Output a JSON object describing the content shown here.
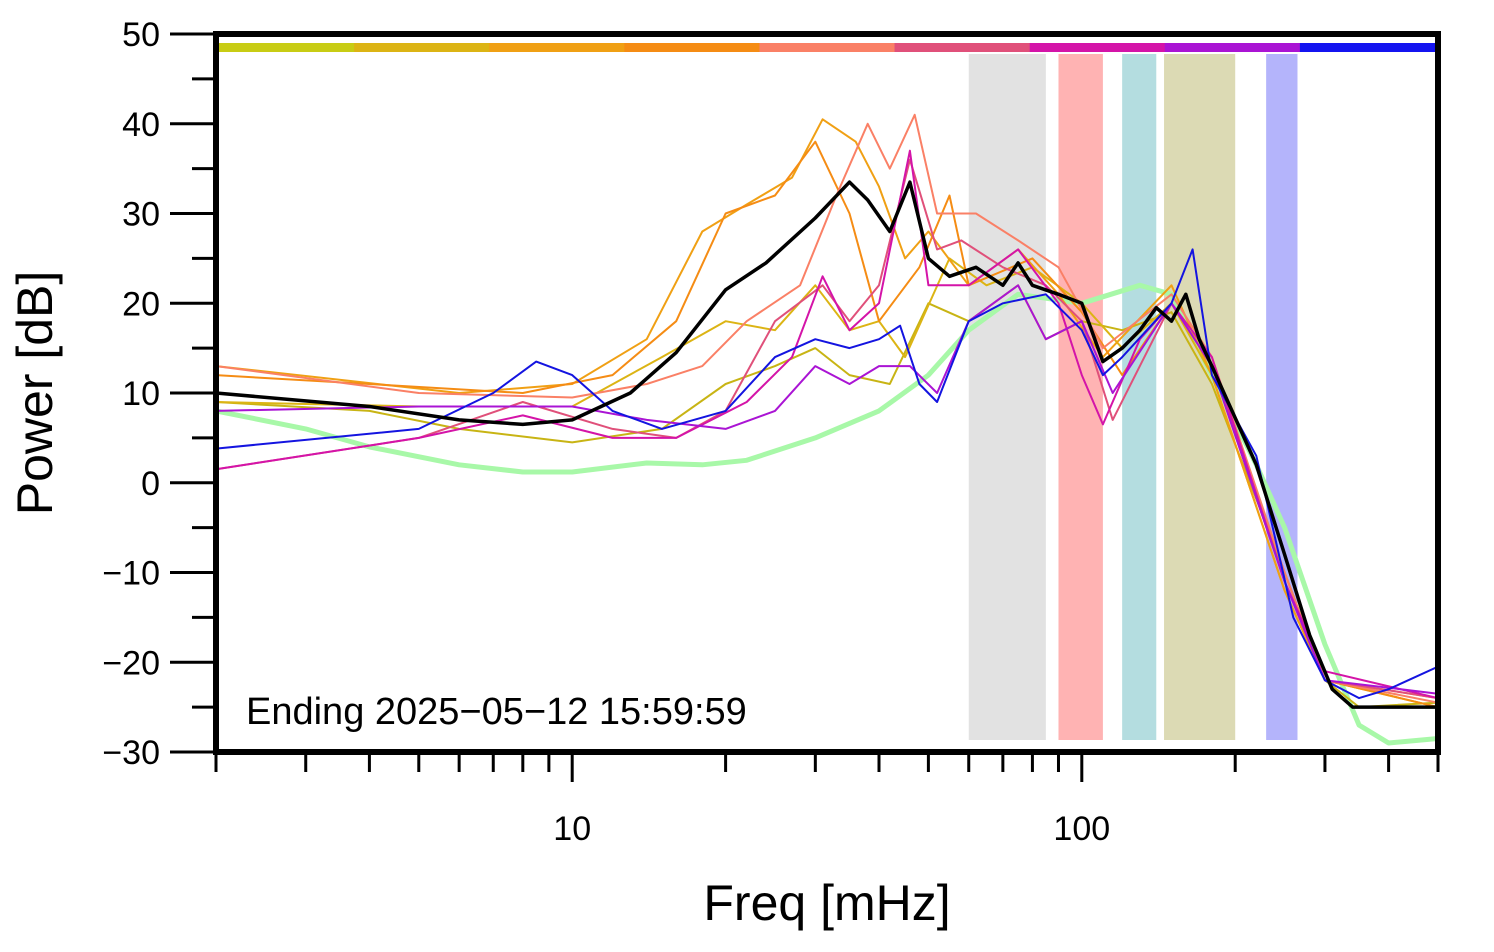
{
  "chart_data": {
    "type": "line",
    "title": "",
    "xlabel": "Freq [mHz]",
    "ylabel": "Power [dB]",
    "x_scale": "log",
    "xlim": [
      2,
      500
    ],
    "ylim": [
      -30,
      50
    ],
    "x_ticks": [
      10,
      100
    ],
    "y_ticks": [
      -30,
      -20,
      -10,
      0,
      10,
      20,
      30,
      40,
      50
    ],
    "annotation": "Ending 2025−05−12 15:59:59",
    "bands": [
      {
        "from": 60,
        "to": 85,
        "color": "#e2e2e2"
      },
      {
        "from": 90,
        "to": 110,
        "color": "#ffb3b3"
      },
      {
        "from": 120,
        "to": 140,
        "color": "#b4dde0"
      },
      {
        "from": 145,
        "to": 200,
        "color": "#dcdab4"
      },
      {
        "from": 230,
        "to": 265,
        "color": "#b4b4fb"
      }
    ],
    "time_strip": [
      "#c8cc14",
      "#dcb414",
      "#f0a014",
      "#f58c14",
      "#fa8066",
      "#e0507a",
      "#d414a8",
      "#aa14d4",
      "#1414f0"
    ],
    "series": [
      {
        "color": "#a8f8a8",
        "width": 5,
        "points": [
          [
            2,
            8
          ],
          [
            3,
            6
          ],
          [
            4,
            4
          ],
          [
            6,
            2
          ],
          [
            8,
            1.2
          ],
          [
            10,
            1.2
          ],
          [
            14,
            2.2
          ],
          [
            18,
            2
          ],
          [
            22,
            2.5
          ],
          [
            30,
            5
          ],
          [
            40,
            8
          ],
          [
            50,
            12
          ],
          [
            60,
            17
          ],
          [
            75,
            21
          ],
          [
            100,
            20
          ],
          [
            130,
            22
          ],
          [
            150,
            21
          ],
          [
            180,
            12
          ],
          [
            220,
            2
          ],
          [
            250,
            -5
          ],
          [
            300,
            -18
          ],
          [
            350,
            -27
          ],
          [
            400,
            -29
          ],
          [
            500,
            -28.5
          ]
        ]
      },
      {
        "color": "#c8b414",
        "width": 2,
        "points": [
          [
            2,
            9
          ],
          [
            4,
            8
          ],
          [
            6,
            6
          ],
          [
            10,
            4.5
          ],
          [
            15,
            6
          ],
          [
            20,
            11
          ],
          [
            25,
            13
          ],
          [
            30,
            15
          ],
          [
            35,
            12
          ],
          [
            42,
            11
          ],
          [
            50,
            20
          ],
          [
            60,
            18
          ],
          [
            75,
            22
          ],
          [
            85,
            16
          ],
          [
            100,
            18
          ],
          [
            120,
            17
          ],
          [
            150,
            19
          ],
          [
            180,
            11
          ],
          [
            250,
            -10
          ],
          [
            300,
            -22
          ],
          [
            350,
            -25
          ],
          [
            500,
            -24.5
          ]
        ]
      },
      {
        "color": "#dcb414",
        "width": 2,
        "points": [
          [
            2,
            9
          ],
          [
            5,
            8.5
          ],
          [
            10,
            8.5
          ],
          [
            15,
            14
          ],
          [
            20,
            18
          ],
          [
            25,
            17
          ],
          [
            30,
            22
          ],
          [
            35,
            17
          ],
          [
            40,
            18
          ],
          [
            45,
            14
          ],
          [
            55,
            25
          ],
          [
            65,
            22
          ],
          [
            80,
            24
          ],
          [
            100,
            20
          ],
          [
            120,
            15
          ],
          [
            150,
            20
          ],
          [
            180,
            12
          ],
          [
            250,
            -12
          ],
          [
            300,
            -22
          ],
          [
            500,
            -25
          ]
        ]
      },
      {
        "color": "#f0a014",
        "width": 2,
        "points": [
          [
            2,
            13
          ],
          [
            6,
            10
          ],
          [
            10,
            11
          ],
          [
            14,
            16
          ],
          [
            18,
            28
          ],
          [
            22,
            31
          ],
          [
            27,
            34
          ],
          [
            31,
            40.5
          ],
          [
            36,
            38
          ],
          [
            40,
            33
          ],
          [
            45,
            25
          ],
          [
            50,
            28
          ],
          [
            60,
            22
          ],
          [
            75,
            26
          ],
          [
            90,
            21
          ],
          [
            110,
            14
          ],
          [
            150,
            22
          ],
          [
            180,
            12
          ],
          [
            250,
            -12
          ],
          [
            300,
            -22
          ],
          [
            500,
            -24
          ]
        ]
      },
      {
        "color": "#f58c14",
        "width": 2,
        "points": [
          [
            2,
            12
          ],
          [
            8,
            10
          ],
          [
            12,
            12
          ],
          [
            16,
            18
          ],
          [
            20,
            30
          ],
          [
            25,
            32
          ],
          [
            30,
            38
          ],
          [
            35,
            30
          ],
          [
            40,
            18
          ],
          [
            48,
            24
          ],
          [
            55,
            32
          ],
          [
            60,
            22
          ],
          [
            80,
            25
          ],
          [
            100,
            19
          ],
          [
            120,
            12
          ],
          [
            150,
            20
          ],
          [
            180,
            13
          ],
          [
            250,
            -10
          ],
          [
            300,
            -22
          ],
          [
            500,
            -25
          ]
        ]
      },
      {
        "color": "#fa8066",
        "width": 2,
        "points": [
          [
            2,
            13
          ],
          [
            5,
            10
          ],
          [
            10,
            9.5
          ],
          [
            14,
            11
          ],
          [
            18,
            13
          ],
          [
            22,
            18
          ],
          [
            28,
            22
          ],
          [
            33,
            32
          ],
          [
            38,
            40
          ],
          [
            42,
            35
          ],
          [
            47,
            41
          ],
          [
            52,
            30
          ],
          [
            62,
            30
          ],
          [
            75,
            27
          ],
          [
            90,
            24
          ],
          [
            110,
            15
          ],
          [
            150,
            21
          ],
          [
            180,
            14
          ],
          [
            250,
            -10
          ],
          [
            300,
            -22
          ],
          [
            500,
            -24.5
          ]
        ]
      },
      {
        "color": "#e0507a",
        "width": 2,
        "points": [
          [
            2,
            1.5
          ],
          [
            5,
            5
          ],
          [
            8,
            9
          ],
          [
            12,
            6
          ],
          [
            16,
            5
          ],
          [
            20,
            8
          ],
          [
            25,
            18
          ],
          [
            31,
            22
          ],
          [
            35,
            18
          ],
          [
            40,
            22
          ],
          [
            46,
            36
          ],
          [
            52,
            26
          ],
          [
            58,
            27
          ],
          [
            70,
            24
          ],
          [
            85,
            22
          ],
          [
            100,
            18
          ],
          [
            115,
            7
          ],
          [
            150,
            20
          ],
          [
            180,
            13
          ],
          [
            250,
            -11
          ],
          [
            300,
            -22
          ],
          [
            500,
            -24
          ]
        ]
      },
      {
        "color": "#d414a8",
        "width": 2,
        "points": [
          [
            2,
            1.5
          ],
          [
            5,
            5
          ],
          [
            8,
            7.5
          ],
          [
            12,
            5
          ],
          [
            16,
            5
          ],
          [
            22,
            9
          ],
          [
            27,
            14
          ],
          [
            31,
            23
          ],
          [
            35,
            17
          ],
          [
            40,
            20
          ],
          [
            46,
            37
          ],
          [
            50,
            22
          ],
          [
            60,
            22
          ],
          [
            75,
            26
          ],
          [
            90,
            20
          ],
          [
            100,
            12
          ],
          [
            110,
            6.5
          ],
          [
            130,
            16
          ],
          [
            150,
            20
          ],
          [
            180,
            14
          ],
          [
            250,
            -11
          ],
          [
            300,
            -21
          ],
          [
            500,
            -24
          ]
        ]
      },
      {
        "color": "#aa14d4",
        "width": 2,
        "points": [
          [
            2,
            8
          ],
          [
            5,
            8.5
          ],
          [
            10,
            8.5
          ],
          [
            14,
            7
          ],
          [
            20,
            6
          ],
          [
            25,
            8
          ],
          [
            30,
            13
          ],
          [
            35,
            11
          ],
          [
            40,
            13
          ],
          [
            46,
            13
          ],
          [
            52,
            10
          ],
          [
            60,
            18
          ],
          [
            75,
            22
          ],
          [
            85,
            16
          ],
          [
            100,
            18
          ],
          [
            115,
            10
          ],
          [
            150,
            20
          ],
          [
            180,
            13
          ],
          [
            250,
            -11
          ],
          [
            300,
            -22
          ],
          [
            500,
            -23.5
          ]
        ]
      },
      {
        "color": "#1414e0",
        "width": 2,
        "points": [
          [
            2,
            3.8
          ],
          [
            5,
            6
          ],
          [
            7,
            10
          ],
          [
            8.5,
            13.5
          ],
          [
            10,
            12
          ],
          [
            12,
            8
          ],
          [
            15,
            6
          ],
          [
            20,
            8
          ],
          [
            25,
            14
          ],
          [
            30,
            16
          ],
          [
            35,
            15
          ],
          [
            40,
            16
          ],
          [
            44,
            17.5
          ],
          [
            48,
            11
          ],
          [
            52,
            9
          ],
          [
            60,
            18
          ],
          [
            70,
            20
          ],
          [
            85,
            21
          ],
          [
            100,
            17
          ],
          [
            110,
            12
          ],
          [
            120,
            14
          ],
          [
            150,
            20
          ],
          [
            165,
            26
          ],
          [
            180,
            12
          ],
          [
            220,
            3
          ],
          [
            260,
            -15
          ],
          [
            300,
            -22
          ],
          [
            350,
            -24
          ],
          [
            400,
            -23
          ],
          [
            500,
            -20.5
          ]
        ]
      },
      {
        "color": "#000000",
        "width": 3.5,
        "points": [
          [
            2,
            10
          ],
          [
            4,
            8.5
          ],
          [
            6,
            7
          ],
          [
            8,
            6.5
          ],
          [
            10,
            7
          ],
          [
            13,
            10
          ],
          [
            16,
            14.5
          ],
          [
            20,
            21.5
          ],
          [
            24,
            24.5
          ],
          [
            30,
            29.5
          ],
          [
            35,
            33.5
          ],
          [
            38,
            31.5
          ],
          [
            42,
            28
          ],
          [
            46,
            33.5
          ],
          [
            50,
            25
          ],
          [
            55,
            23
          ],
          [
            62,
            24
          ],
          [
            70,
            22
          ],
          [
            75,
            24.5
          ],
          [
            80,
            22
          ],
          [
            90,
            21
          ],
          [
            100,
            20
          ],
          [
            110,
            13.5
          ],
          [
            120,
            15
          ],
          [
            130,
            17
          ],
          [
            140,
            19.5
          ],
          [
            150,
            18
          ],
          [
            160,
            21
          ],
          [
            170,
            16
          ],
          [
            180,
            13
          ],
          [
            220,
            2
          ],
          [
            250,
            -8
          ],
          [
            280,
            -17
          ],
          [
            310,
            -23
          ],
          [
            340,
            -25
          ],
          [
            380,
            -25
          ],
          [
            420,
            -25
          ],
          [
            500,
            -25
          ]
        ]
      }
    ]
  }
}
